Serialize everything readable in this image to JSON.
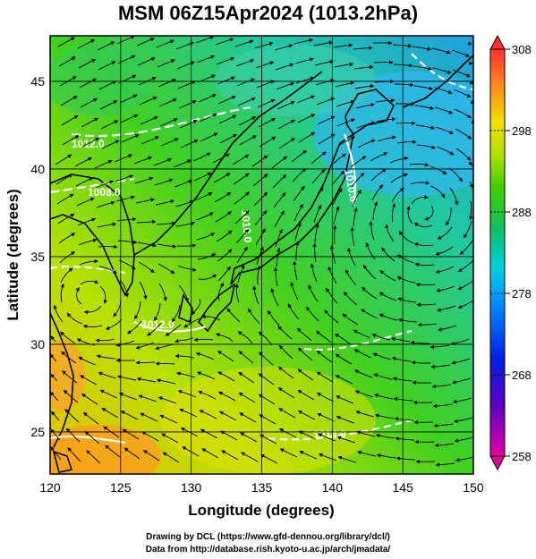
{
  "title": "MSM 06Z15Apr2024 (1013.2hPa)",
  "axes": {
    "xlabel": "Longitude (degrees)",
    "ylabel": "Latitude  (degrees)",
    "xticks": [
      "120",
      "125",
      "130",
      "135",
      "140",
      "145",
      "150"
    ],
    "yticks": [
      "25",
      "30",
      "35",
      "40",
      "45"
    ]
  },
  "colorbar": {
    "labels": [
      "308",
      "298",
      "288",
      "278",
      "268",
      "258"
    ],
    "colors": [
      "#e0007a",
      "#7000c0",
      "#1030e0",
      "#00a0ff",
      "#00e0d0",
      "#10c060",
      "#30d000",
      "#a0e000",
      "#f0e000",
      "#ff9020",
      "#ff3030"
    ]
  },
  "contour_labels": [
    "1012.0",
    "1012.0",
    "1010.0",
    "1008.0",
    "1014.0",
    "1010.0"
  ],
  "credits": {
    "line1": "Drawing by DCL (https://www.gfd-dennou.org/library/dcl/)",
    "line2": "Data from http://database.rish.kyoto-u.ac.jp/arch/jmadata/"
  }
}
